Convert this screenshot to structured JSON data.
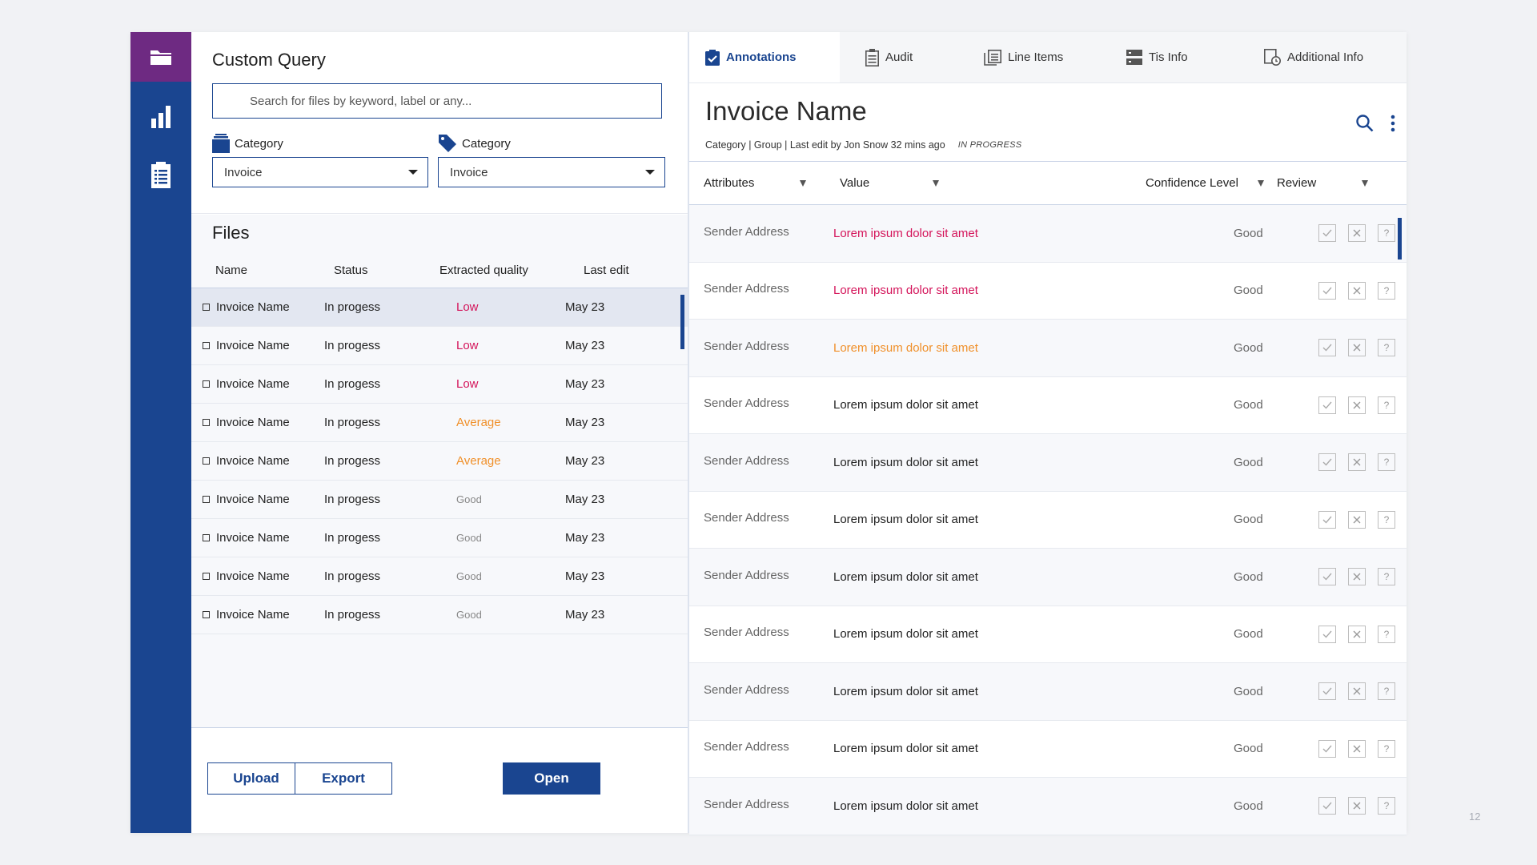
{
  "nav": {
    "items": [
      {
        "icon": "folder-icon",
        "active": true
      },
      {
        "icon": "bar-chart-icon",
        "active": false
      },
      {
        "icon": "clipboard-icon",
        "active": false
      }
    ]
  },
  "query": {
    "title": "Custom Query",
    "search_placeholder": "Search for files by keyword, label or any...",
    "filters": [
      {
        "label": "Category",
        "icon": "folder-stack-icon",
        "value": "Invoice"
      },
      {
        "label": "Category",
        "icon": "tag-icon",
        "value": "Invoice"
      }
    ]
  },
  "files": {
    "title": "Files",
    "columns": [
      "Name",
      "Status",
      "Extracted quality",
      "Last edit"
    ],
    "rows": [
      {
        "name": "Invoice Name",
        "status": "In progess",
        "quality": "Low",
        "edit": "May 23"
      },
      {
        "name": "Invoice Name",
        "status": "In progess",
        "quality": "Low",
        "edit": "May 23"
      },
      {
        "name": "Invoice Name",
        "status": "In progess",
        "quality": "Low",
        "edit": "May 23"
      },
      {
        "name": "Invoice Name",
        "status": "In progess",
        "quality": "Average",
        "edit": "May 23"
      },
      {
        "name": "Invoice Name",
        "status": "In progess",
        "quality": "Average",
        "edit": "May 23"
      },
      {
        "name": "Invoice Name",
        "status": "In progess",
        "quality": "Good",
        "edit": "May 23"
      },
      {
        "name": "Invoice Name",
        "status": "In progess",
        "quality": "Good",
        "edit": "May 23"
      },
      {
        "name": "Invoice Name",
        "status": "In progess",
        "quality": "Good",
        "edit": "May 23"
      },
      {
        "name": "Invoice Name",
        "status": "In progess",
        "quality": "Good",
        "edit": "May 23"
      }
    ],
    "buttons": {
      "upload": "Upload",
      "export": "Export",
      "open": "Open"
    }
  },
  "tabs": [
    {
      "label": "Annotations",
      "icon": "checklist-icon",
      "active": true
    },
    {
      "label": "Audit",
      "icon": "clipboard-list-icon",
      "active": false
    },
    {
      "label": "Line Items",
      "icon": "list-copy-icon",
      "active": false
    },
    {
      "label": "Tis Info",
      "icon": "server-icon",
      "active": false
    },
    {
      "label": "Additional Info",
      "icon": "document-clock-icon",
      "active": false
    }
  ],
  "detail": {
    "title": "Invoice Name",
    "meta": "Category | Group | Last edit by Jon Snow 32 mins ago",
    "status": "IN PROGRESS",
    "columns": [
      "Attributes",
      "Value",
      "Confidence Level",
      "Review"
    ],
    "rows": [
      {
        "attr": "Sender Address",
        "value": "Lorem ipsum dolor sit amet",
        "tone": "red",
        "conf": "Good"
      },
      {
        "attr": "Sender Address",
        "value": "Lorem ipsum dolor sit amet",
        "tone": "red",
        "conf": "Good"
      },
      {
        "attr": "Sender Address",
        "value": "Lorem ipsum dolor sit amet",
        "tone": "orange",
        "conf": "Good"
      },
      {
        "attr": "Sender Address",
        "value": "Lorem ipsum dolor sit amet",
        "tone": "plain",
        "conf": "Good"
      },
      {
        "attr": "Sender Address",
        "value": "Lorem ipsum dolor sit amet",
        "tone": "plain",
        "conf": "Good"
      },
      {
        "attr": "Sender Address",
        "value": "Lorem ipsum dolor sit amet",
        "tone": "plain",
        "conf": "Good"
      },
      {
        "attr": "Sender Address",
        "value": "Lorem ipsum dolor sit amet",
        "tone": "plain",
        "conf": "Good"
      },
      {
        "attr": "Sender Address",
        "value": "Lorem ipsum dolor sit amet",
        "tone": "plain",
        "conf": "Good"
      },
      {
        "attr": "Sender Address",
        "value": "Lorem ipsum dolor sit amet",
        "tone": "plain",
        "conf": "Good"
      },
      {
        "attr": "Sender Address",
        "value": "Lorem ipsum dolor sit amet",
        "tone": "plain",
        "conf": "Good"
      },
      {
        "attr": "Sender Address",
        "value": "Lorem ipsum dolor sit amet",
        "tone": "plain",
        "conf": "Good"
      }
    ]
  },
  "colors": {
    "brand_blue": "#1a4590",
    "active_purple": "#6e2a82",
    "low": "#d4145a",
    "average": "#f0902a"
  },
  "page_number": "12"
}
